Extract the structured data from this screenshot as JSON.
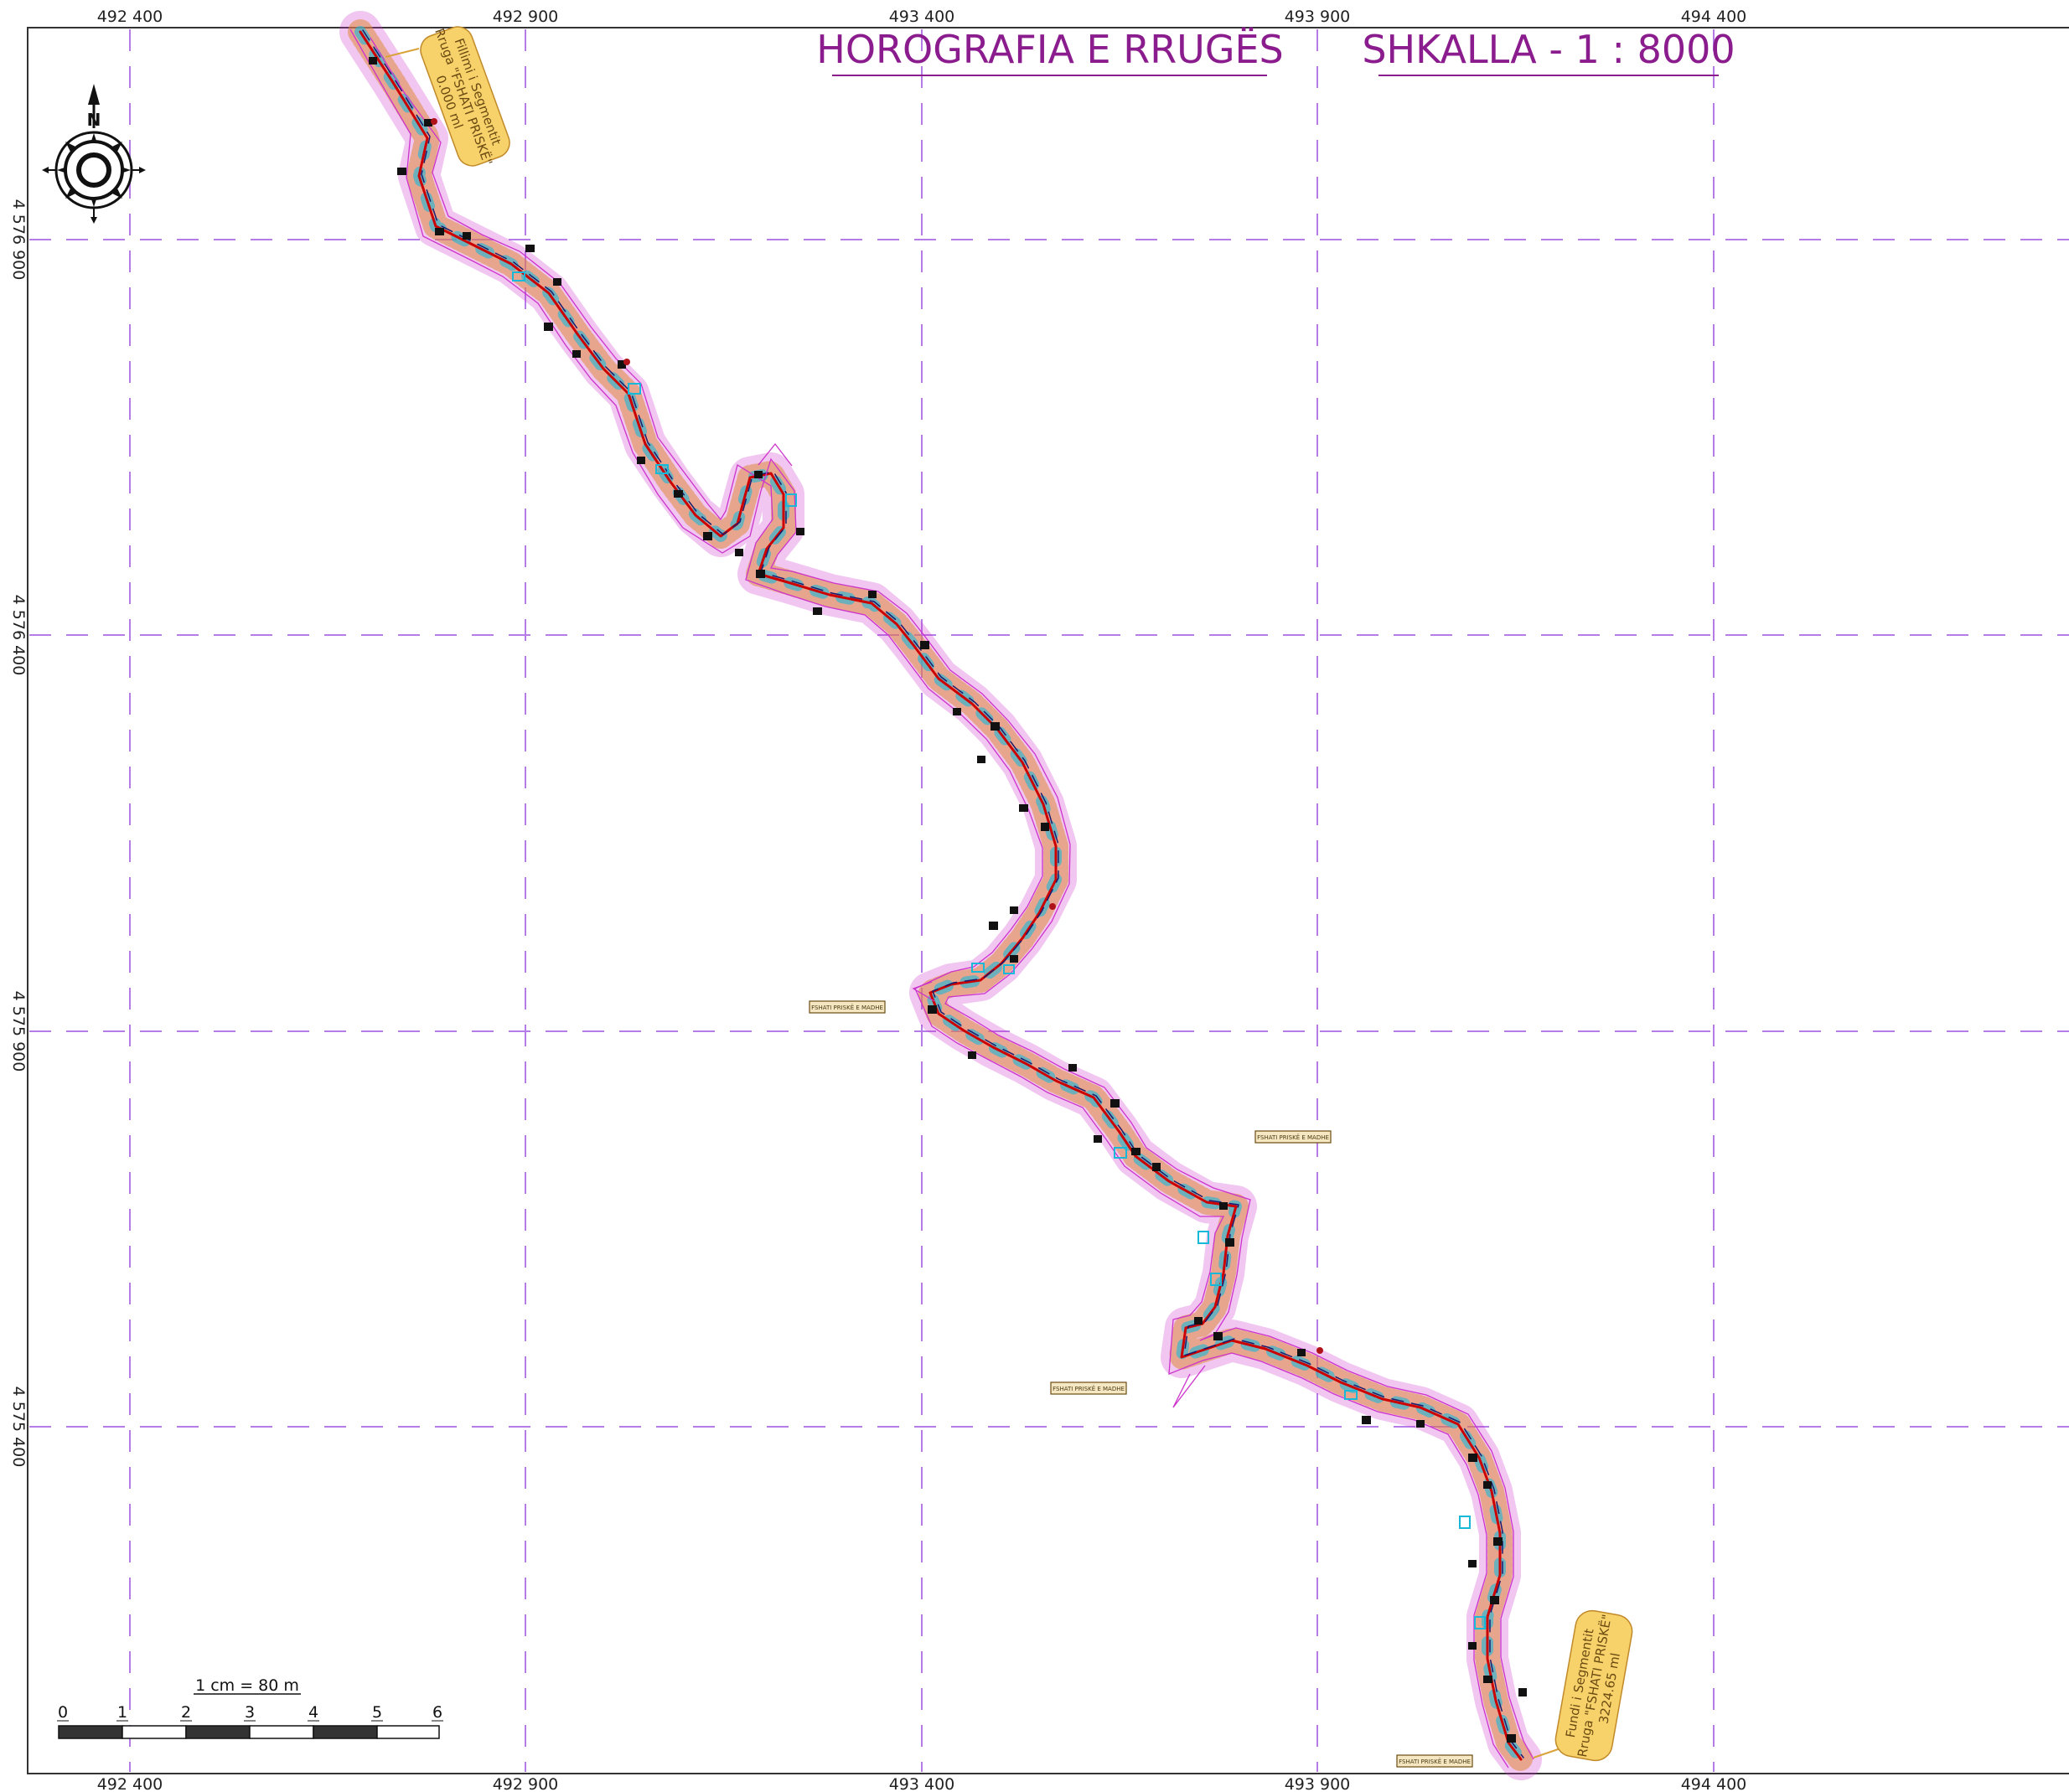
{
  "title": "HOROGRAFIA E RRUGËS",
  "scale_title": "SHKALLA - 1 : 8000",
  "grid": {
    "x_labels": [
      "492 400",
      "492 900",
      "493 400",
      "493 900",
      "494 400"
    ],
    "y_labels": [
      "4 576 900",
      "4 576 400",
      "4 575 900",
      "4 575 400"
    ]
  },
  "north_arrow": {
    "letter": "N"
  },
  "start_callout": {
    "line1": "Fillimi i Segmentit",
    "line2": "Rruga \"FSHATI PRISKË\"",
    "line3": "0.000 ml"
  },
  "end_callout": {
    "line1": "Fundi i Segmentit",
    "line2": "Rruga \"FSHATI PRISKË\"",
    "line3": "3224.65 ml"
  },
  "village_labels": [
    "FSHATI PRISKË E MADHE",
    "FSHATI PRISKË E MADHE",
    "FSHATI PRISKË E MADHE",
    "FSHATI PRISKË E MADHE"
  ],
  "scale_bar": {
    "unit_label": "1 cm  =  80 m",
    "ticks": [
      "0",
      "1",
      "2",
      "3",
      "4",
      "5",
      "6"
    ]
  },
  "colors": {
    "title": "#8b1c8e",
    "grid": "#b57be6",
    "corridor": "#cc33cc",
    "road": "#cc0000",
    "callout_fill": "#f7d16a"
  }
}
